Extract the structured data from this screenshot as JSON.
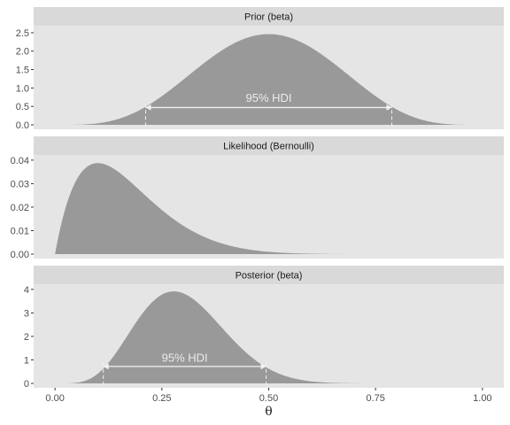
{
  "chart_data": {
    "type": "area",
    "xlabel": "θ",
    "xlim": [
      0,
      1
    ],
    "x_ticks": [
      "0.00",
      "0.25",
      "0.50",
      "0.75",
      "1.00"
    ],
    "x_tick_values": [
      0,
      0.25,
      0.5,
      0.75,
      1
    ],
    "panels": [
      {
        "title": "Prior (beta)",
        "distribution": {
          "family": "beta",
          "a": 5,
          "b": 5
        },
        "ylim": [
          0,
          2.55
        ],
        "y_ticks": [
          "0.0",
          "0.5",
          "1.0",
          "1.5",
          "2.0",
          "2.5"
        ],
        "y_tick_values": [
          0,
          0.5,
          1,
          1.5,
          2,
          2.5
        ],
        "hdi": {
          "label": "95% HDI",
          "low": 0.212,
          "high": 0.788,
          "y": 0.47,
          "label_y": 0.72
        }
      },
      {
        "title": "Likelihood (Bernoulli)",
        "distribution": {
          "family": "bernoulli",
          "successes": 1,
          "failures": 9
        },
        "ylim": [
          0,
          0.04
        ],
        "y_ticks": [
          "0.00",
          "0.01",
          "0.02",
          "0.03",
          "0.04"
        ],
        "y_tick_values": [
          0,
          0.01,
          0.02,
          0.03,
          0.04
        ]
      },
      {
        "title": "Posterior (beta)",
        "distribution": {
          "family": "beta",
          "a": 6,
          "b": 14
        },
        "ylim": [
          0,
          4
        ],
        "y_ticks": [
          "0",
          "1",
          "2",
          "3",
          "4"
        ],
        "y_tick_values": [
          0,
          1,
          2,
          3,
          4
        ],
        "hdi": {
          "label": "95% HDI",
          "low": 0.113,
          "high": 0.494,
          "y": 0.72,
          "label_y": 1.08
        }
      }
    ]
  },
  "colors": {
    "panel_background": "#e5e5e5",
    "strip_background": "#d9d9d9",
    "area_fill": "#999999",
    "hdi_line": "#f2f2f2",
    "tick_color": "#333333"
  }
}
